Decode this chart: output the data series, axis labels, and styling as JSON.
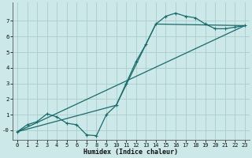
{
  "xlabel": "Humidex (Indice chaleur)",
  "xlim": [
    -0.5,
    23.5
  ],
  "ylim": [
    -0.6,
    8.2
  ],
  "yticks": [
    0,
    1,
    2,
    3,
    4,
    5,
    6,
    7
  ],
  "xticks": [
    0,
    1,
    2,
    3,
    4,
    5,
    6,
    7,
    8,
    9,
    10,
    11,
    12,
    13,
    14,
    15,
    16,
    17,
    18,
    19,
    20,
    21,
    22,
    23
  ],
  "bg_color": "#cce8e8",
  "line_color": "#1a6b6b",
  "grid_color": "#aacccc",
  "line1_x": [
    0,
    1,
    2,
    3,
    4,
    5,
    6,
    7,
    8,
    9,
    10,
    11,
    12,
    13,
    14,
    15,
    16,
    17,
    18,
    19,
    20,
    21,
    22,
    23
  ],
  "line1_y": [
    -0.1,
    0.35,
    0.55,
    1.05,
    0.85,
    0.45,
    0.35,
    -0.3,
    -0.35,
    1.0,
    1.6,
    3.0,
    4.4,
    5.5,
    6.8,
    7.3,
    7.5,
    7.3,
    7.2,
    6.8,
    6.5,
    6.5,
    6.6,
    6.7
  ],
  "line2_x": [
    0,
    10,
    14,
    23
  ],
  "line2_y": [
    -0.1,
    1.6,
    6.8,
    6.7
  ],
  "line3_x": [
    0,
    23
  ],
  "line3_y": [
    -0.1,
    6.7
  ]
}
